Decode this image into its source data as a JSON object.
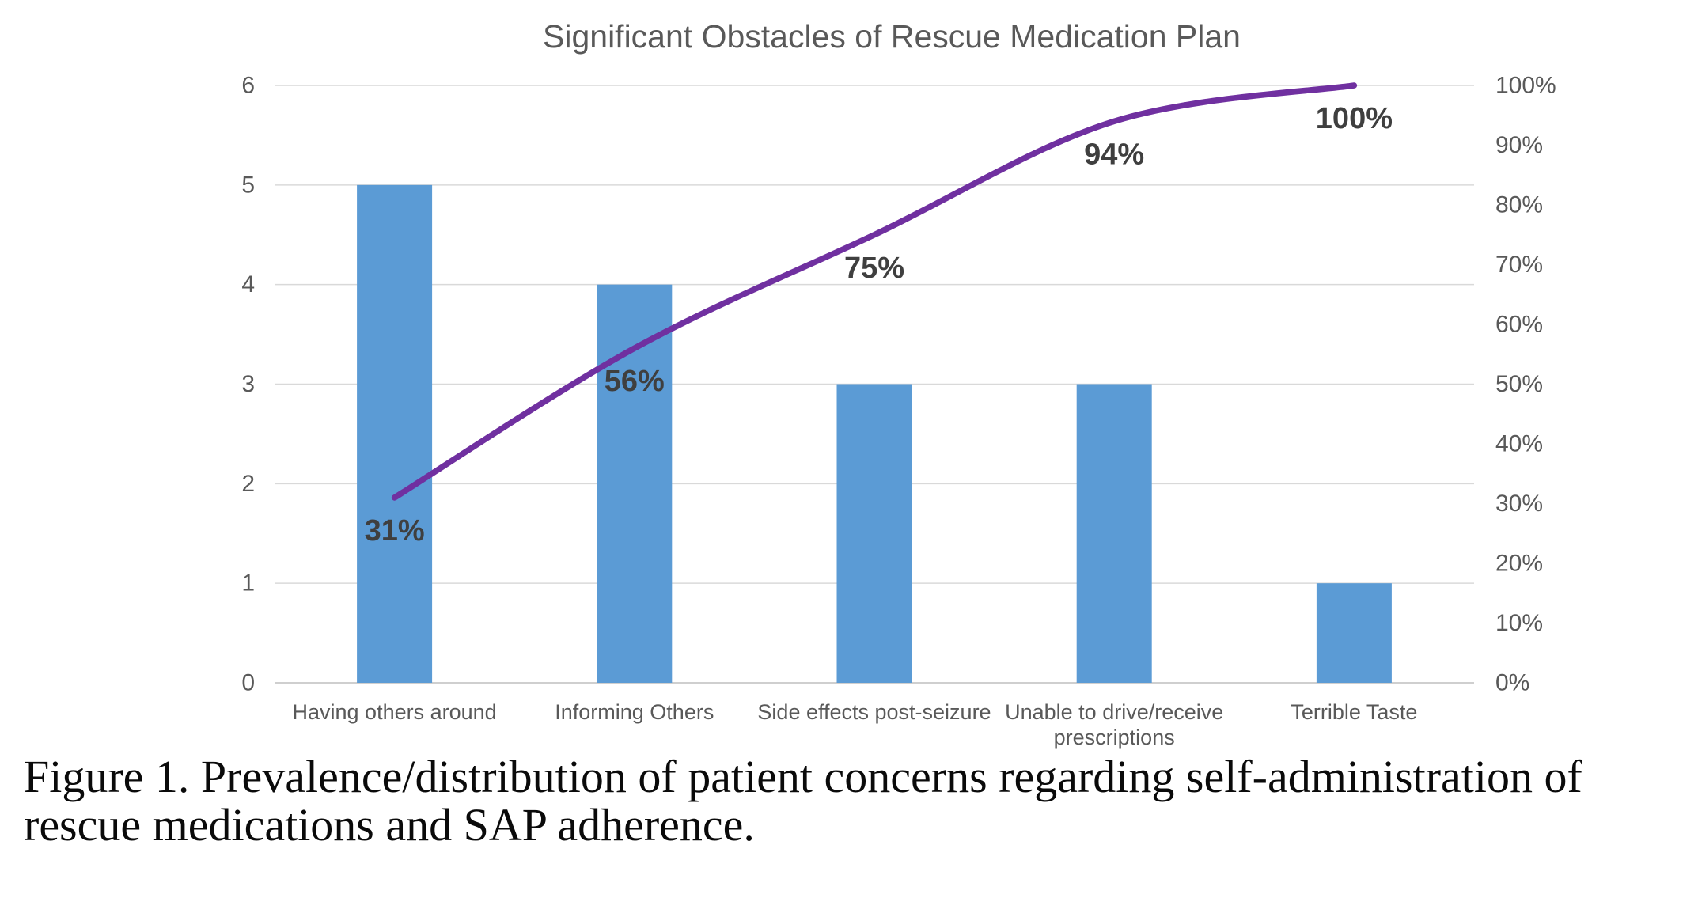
{
  "chart": {
    "title": "Significant Obstacles of Rescue Medication Plan",
    "colors": {
      "bar": "#5B9BD5",
      "line": "#7030A0",
      "gridline": "#D9D9D9",
      "axis_line": "#CFCFCF",
      "axis_text": "#595959",
      "category_text": "#595959",
      "data_label_text": "#3F3F3F",
      "title_text": "#595959",
      "background": "#FFFFFF"
    }
  },
  "chart_data": {
    "type": "bar",
    "subtype": "pareto: clustered columns + smoothed cumulative-percent line, dual axes",
    "title": "Significant Obstacles of Rescue Medication Plan",
    "categories": [
      "Having others around",
      "Informing Others",
      "Side effects post-seizure",
      "Unable to drive/receive prescriptions",
      "Terrible Taste"
    ],
    "series": [
      {
        "name": "Count",
        "type": "bar",
        "axis": "left",
        "color": "#5B9BD5",
        "values": [
          5,
          4,
          3,
          3,
          1
        ]
      },
      {
        "name": "Cumulative percent",
        "type": "line",
        "axis": "right",
        "color": "#7030A0",
        "smooth": true,
        "values": [
          31,
          56,
          75,
          94,
          100
        ],
        "data_labels": [
          "31%",
          "56%",
          "75%",
          "94%",
          "100%"
        ]
      }
    ],
    "left_axis": {
      "min": 0,
      "max": 6,
      "tick_labels": [
        "0",
        "1",
        "2",
        "3",
        "4",
        "5",
        "6"
      ]
    },
    "right_axis": {
      "min": 0,
      "max": 100,
      "tick_labels": [
        "0%",
        "10%",
        "20%",
        "30%",
        "40%",
        "50%",
        "60%",
        "70%",
        "80%",
        "90%",
        "100%"
      ]
    },
    "gridlines": "horizontal at left-axis integers",
    "legend": "none",
    "xlabel": "",
    "ylabel": ""
  },
  "caption": {
    "text": "Figure 1. Prevalence/distribution of patient concerns regarding self-administration of rescue medications and SAP adherence."
  }
}
